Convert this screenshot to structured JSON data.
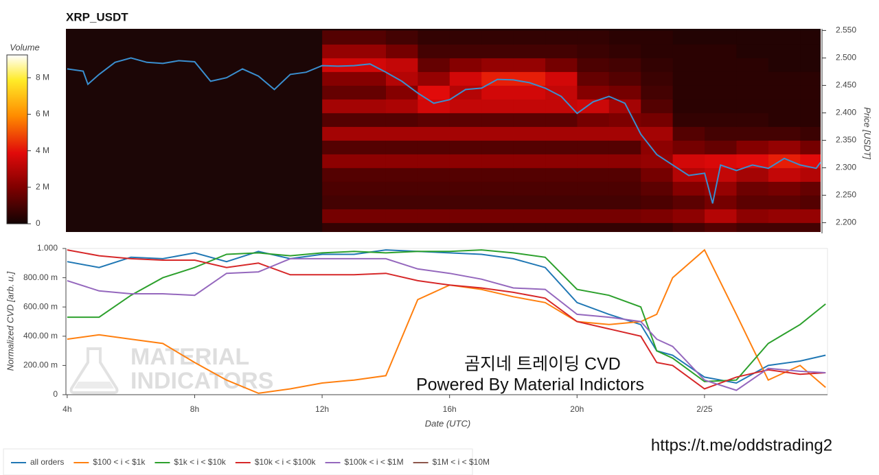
{
  "chart_data": [
    {
      "type": "heatmap",
      "title": "XRP_USDT",
      "ylabel": "Price [USDT]",
      "xlim": [
        3.96,
        27.64
      ],
      "ylim": [
        2.183,
        2.553
      ],
      "yticks": [
        {
          "value": 2.2,
          "label": "2.200"
        },
        {
          "value": 2.25,
          "label": "2.250"
        },
        {
          "value": 2.3,
          "label": "2.300"
        },
        {
          "value": 2.35,
          "label": "2.350"
        },
        {
          "value": 2.4,
          "label": "2.400"
        },
        {
          "value": 2.45,
          "label": "2.450"
        },
        {
          "value": 2.5,
          "label": "2.500"
        },
        {
          "value": 2.55,
          "label": "2.550"
        }
      ],
      "xbins": [
        12,
        13,
        14,
        15,
        16,
        17,
        18,
        19,
        20,
        21,
        22,
        23,
        24,
        25,
        26,
        27,
        28
      ],
      "ybins": [
        2.175,
        2.2,
        2.225,
        2.25,
        2.275,
        2.3,
        2.325,
        2.35,
        2.375,
        2.4,
        2.425,
        2.45,
        2.475,
        2.5,
        2.525,
        2.55
      ],
      "z": [
        [
          600000,
          600000,
          600000,
          600000,
          600000,
          600000,
          600000,
          600000,
          600000,
          600000,
          600000,
          900000,
          1200000,
          900000,
          900000,
          900000
        ],
        [
          1800000,
          1800000,
          1800000,
          1800000,
          1800000,
          1800000,
          1800000,
          1800000,
          1800000,
          1800000,
          1950000,
          2250000,
          3000000,
          2250000,
          2400000,
          2400000
        ],
        [
          900000,
          900000,
          900000,
          900000,
          900000,
          900000,
          900000,
          900000,
          900000,
          900000,
          1050000,
          1350000,
          1800000,
          1350000,
          1350000,
          1200000
        ],
        [
          1050000,
          1050000,
          1050000,
          1050000,
          1050000,
          1050000,
          1050000,
          1050000,
          1050000,
          1050000,
          1350000,
          2100000,
          2400000,
          1650000,
          1800000,
          1500000
        ],
        [
          1200000,
          1200000,
          1200000,
          1200000,
          1200000,
          1200000,
          1200000,
          1200000,
          1200000,
          1200000,
          1800000,
          3000000,
          3300000,
          2700000,
          3300000,
          3000000
        ],
        [
          2250000,
          2250000,
          2250000,
          2250000,
          2250000,
          2250000,
          2250000,
          2250000,
          2250000,
          2250000,
          2400000,
          3600000,
          3750000,
          3900000,
          4200000,
          3900000
        ],
        [
          1200000,
          1200000,
          1200000,
          1200000,
          1200000,
          1200000,
          1200000,
          1200000,
          1200000,
          1200000,
          2250000,
          1800000,
          1500000,
          2100000,
          2400000,
          1800000
        ],
        [
          2700000,
          2700000,
          2700000,
          2700000,
          2700000,
          2700000,
          2700000,
          2700000,
          2700000,
          2700000,
          2700000,
          1200000,
          900000,
          900000,
          900000,
          750000
        ],
        [
          1200000,
          1200000,
          1200000,
          1350000,
          1350000,
          1350000,
          1350000,
          1350000,
          1800000,
          1950000,
          1800000,
          600000,
          600000,
          600000,
          450000,
          450000
        ],
        [
          2700000,
          2700000,
          2850000,
          3600000,
          3300000,
          3300000,
          3300000,
          3300000,
          3450000,
          2700000,
          1200000,
          450000,
          450000,
          450000,
          450000,
          450000
        ],
        [
          1500000,
          1500000,
          2100000,
          3900000,
          3000000,
          3600000,
          3600000,
          3300000,
          2100000,
          1800000,
          900000,
          450000,
          450000,
          450000,
          450000,
          450000
        ],
        [
          2100000,
          2100000,
          3000000,
          2400000,
          3600000,
          4200000,
          4200000,
          3600000,
          1500000,
          1200000,
          750000,
          450000,
          450000,
          450000,
          450000,
          450000
        ],
        [
          3600000,
          3600000,
          3300000,
          1500000,
          2100000,
          2400000,
          2400000,
          1800000,
          1050000,
          900000,
          600000,
          450000,
          450000,
          450000,
          300000,
          300000
        ],
        [
          2400000,
          2400000,
          1800000,
          900000,
          900000,
          900000,
          900000,
          900000,
          750000,
          600000,
          450000,
          450000,
          450000,
          300000,
          300000,
          300000
        ],
        [
          1200000,
          1200000,
          900000,
          600000,
          600000,
          600000,
          600000,
          600000,
          600000,
          450000,
          450000,
          300000,
          300000,
          300000,
          300000,
          300000
        ]
      ],
      "colorbar": {
        "label": "Volume",
        "lim": [
          0,
          9250000
        ],
        "ticks": [
          0,
          {
            "value": 2000000,
            "label": "2 M"
          },
          {
            "value": 4000000,
            "label": "4 M"
          },
          {
            "value": 6000000,
            "label": "6 M"
          },
          {
            "value": 8000000,
            "label": "8 M"
          }
        ]
      },
      "price_line": {
        "color": "#3a8fd0",
        "x": [
          4,
          4.5,
          4.65,
          5,
          5.5,
          6,
          6.5,
          7,
          7.5,
          8,
          8.5,
          9,
          9.5,
          10,
          10.5,
          11,
          11.5,
          12,
          12.5,
          13,
          13.5,
          14,
          14.5,
          15,
          15.5,
          16,
          16.5,
          17,
          17.5,
          18,
          18.5,
          19,
          19.5,
          20,
          20.5,
          21,
          21.5,
          22,
          22.5,
          23,
          23.5,
          24,
          24.25,
          24.5,
          25,
          25.5,
          26,
          26.5,
          27,
          27.5,
          27.64
        ],
        "values": [
          2.48,
          2.476,
          2.452,
          2.47,
          2.492,
          2.5,
          2.492,
          2.49,
          2.495,
          2.493,
          2.4575,
          2.464,
          2.48,
          2.467,
          2.4425,
          2.47,
          2.474,
          2.486,
          2.485,
          2.486,
          2.489,
          2.474,
          2.4575,
          2.436,
          2.4175,
          2.424,
          2.4425,
          2.445,
          2.461,
          2.46,
          2.455,
          2.445,
          2.43,
          2.399,
          2.42,
          2.43,
          2.4175,
          2.361,
          2.324,
          2.305,
          2.286,
          2.29,
          2.235,
          2.305,
          2.295,
          2.305,
          2.299,
          2.317,
          2.305,
          2.299,
          2.31
        ]
      }
    },
    {
      "type": "line",
      "ylabel": "Normalized CVD [arb. u.]",
      "xlabel": "Date (UTC)",
      "xlim": [
        3.96,
        27.86
      ],
      "ylim": [
        0,
        1
      ],
      "xticks": [
        {
          "value": 4,
          "label": "4h"
        },
        {
          "value": 8,
          "label": "8h"
        },
        {
          "value": 12,
          "label": "12h"
        },
        {
          "value": 16,
          "label": "16h"
        },
        {
          "value": 20,
          "label": "20h"
        },
        {
          "value": 24,
          "label": "2/25"
        }
      ],
      "yticks": [
        0,
        {
          "value": 0.2,
          "label": "200.00 m"
        },
        {
          "value": 0.4,
          "label": "400.00 m"
        },
        {
          "value": 0.6,
          "label": "600.00 m"
        },
        {
          "value": 0.8,
          "label": "800.00 m"
        },
        {
          "value": 1,
          "label": "1.000"
        }
      ],
      "grid": true,
      "x": [
        4,
        5,
        6,
        7,
        8,
        9,
        10,
        11,
        12,
        13,
        14,
        15,
        16,
        17,
        18,
        19,
        20,
        21,
        22,
        22.5,
        23,
        24,
        25,
        26,
        27,
        27.8
      ],
      "series": [
        {
          "name": "all orders",
          "color": "#1f77b4",
          "values": [
            0.91,
            0.87,
            0.94,
            0.93,
            0.97,
            0.91,
            0.98,
            0.93,
            0.96,
            0.96,
            0.99,
            0.98,
            0.97,
            0.96,
            0.93,
            0.87,
            0.63,
            0.55,
            0.48,
            0.3,
            0.27,
            0.12,
            0.08,
            0.2,
            0.23,
            0.27
          ]
        },
        {
          "name": "$100 < i < $1k",
          "color": "#ff7f0e",
          "values": [
            0.38,
            0.41,
            0.38,
            0.35,
            0.22,
            0.1,
            0.01,
            0.04,
            0.08,
            0.1,
            0.13,
            0.65,
            0.75,
            0.72,
            0.67,
            0.63,
            0.5,
            0.48,
            0.5,
            0.55,
            0.8,
            0.99,
            0.55,
            0.1,
            0.2,
            0.05
          ]
        },
        {
          "name": "$1k < i < $10k",
          "color": "#2ca02c",
          "values": [
            0.53,
            0.53,
            0.68,
            0.8,
            0.87,
            0.96,
            0.97,
            0.95,
            0.97,
            0.98,
            0.97,
            0.98,
            0.98,
            0.99,
            0.97,
            0.94,
            0.72,
            0.68,
            0.6,
            0.3,
            0.25,
            0.09,
            0.1,
            0.35,
            0.48,
            0.62
          ]
        },
        {
          "name": "$10k < i < $100k",
          "color": "#d62728",
          "values": [
            0.99,
            0.95,
            0.93,
            0.92,
            0.92,
            0.87,
            0.9,
            0.82,
            0.82,
            0.82,
            0.83,
            0.78,
            0.75,
            0.73,
            0.7,
            0.66,
            0.5,
            0.45,
            0.4,
            0.22,
            0.2,
            0.04,
            0.12,
            0.17,
            0.14,
            0.15
          ]
        },
        {
          "name": "$100k < i < $1M",
          "color": "#9467bd",
          "values": [
            0.78,
            0.71,
            0.69,
            0.69,
            0.68,
            0.83,
            0.84,
            0.93,
            0.93,
            0.93,
            0.93,
            0.86,
            0.83,
            0.79,
            0.73,
            0.72,
            0.55,
            0.53,
            0.5,
            0.38,
            0.33,
            0.1,
            0.03,
            0.18,
            0.16,
            0.15
          ]
        },
        {
          "name": "$1M < i < $10M",
          "color": "#8c564b",
          "values": [
            null,
            null,
            null,
            null,
            null,
            null,
            null,
            null,
            null,
            null,
            null,
            null,
            null,
            null,
            null,
            null,
            null,
            null,
            null,
            null,
            null,
            null,
            null,
            null,
            null,
            null
          ]
        }
      ],
      "watermark": [
        "MATERIAL",
        "INDICATORS"
      ],
      "annotations": [
        "곰지네 트레이딩 CVD",
        "Powered By Material Indictors"
      ]
    }
  ],
  "footer_link": "https://t.me/oddstrading2"
}
